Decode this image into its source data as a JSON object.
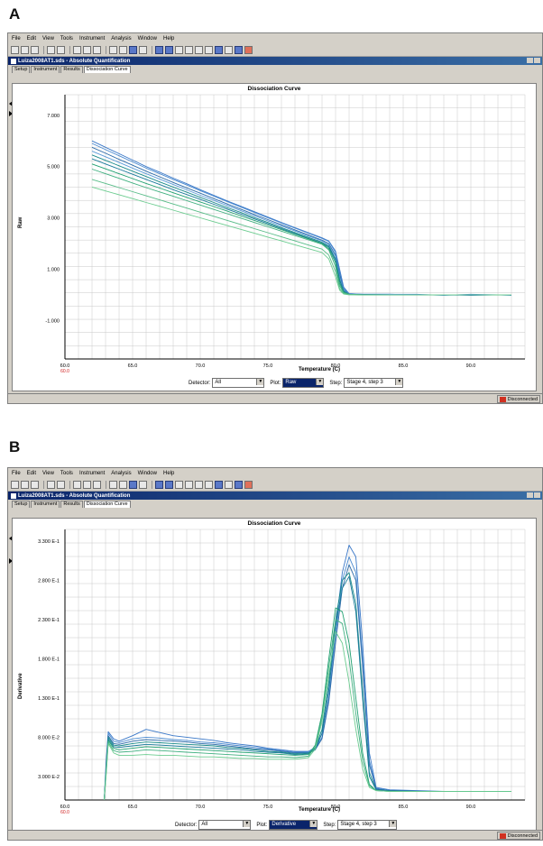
{
  "panels": [
    {
      "letter": "A",
      "menu": [
        "File",
        "Edit",
        "View",
        "Tools",
        "Instrument",
        "Analysis",
        "Window",
        "Help"
      ],
      "window_title": "Luiza2008AT1.sds - Absolute Quantification",
      "tabs": [
        "Setup",
        "Instrument",
        "Results",
        "Dissociation Curve"
      ],
      "active_tab": "Dissociation Curve",
      "chart_title": "Dissociation Curve",
      "ylabel": "Raw",
      "xlabel": "Temperature (C)",
      "detector_label": "Detector:",
      "detector_value": "All",
      "plot_label": "Plot:",
      "plot_value": "Raw",
      "step_label": "Step:",
      "step_value": "Stage 4, step 3",
      "status": "Disconnected"
    },
    {
      "letter": "B",
      "menu": [
        "File",
        "Edit",
        "View",
        "Tools",
        "Instrument",
        "Analysis",
        "Window",
        "Help"
      ],
      "window_title": "Luiza2008AT1.sds - Absolute Quantification",
      "tabs": [
        "Setup",
        "Instrument",
        "Results",
        "Dissociation Curve"
      ],
      "active_tab": "Dissociation Curve",
      "chart_title": "Dissociation Curve",
      "ylabel": "Derivative",
      "xlabel": "Temperature (C)",
      "detector_label": "Detector:",
      "detector_value": "All",
      "plot_label": "Plot:",
      "plot_value": "Derivative",
      "step_label": "Step:",
      "step_value": "Stage 4, step 3",
      "status": "Disconnected"
    }
  ],
  "chart_data": [
    {
      "type": "line",
      "title": "Dissociation Curve",
      "xlabel": "Temperature (C)",
      "ylabel": "Raw",
      "x_ticks": [
        "60.0",
        "65.0",
        "70.0",
        "75.0",
        "80.0",
        "85.0",
        "90.0"
      ],
      "x_tick_extra": "60.0",
      "y_ticks": [
        "7.000",
        "5.000",
        "3.000",
        "1.000",
        "-1.000"
      ],
      "xlim": [
        60,
        94
      ],
      "ylim": [
        -2.5,
        7.8
      ],
      "grid": true,
      "x": [
        62,
        63,
        64,
        65,
        66,
        67,
        68,
        69,
        70,
        71,
        72,
        73,
        74,
        75,
        76,
        77,
        78,
        79,
        79.5,
        80,
        80.3,
        80.6,
        81,
        82,
        84,
        86,
        88,
        90,
        92,
        93
      ],
      "series": [
        {
          "color": "#3a78c8",
          "values": [
            6.0,
            5.75,
            5.5,
            5.25,
            5.0,
            4.78,
            4.55,
            4.33,
            4.1,
            3.88,
            3.66,
            3.45,
            3.24,
            3.03,
            2.82,
            2.62,
            2.42,
            2.22,
            2.1,
            1.7,
            1.0,
            0.3,
            0.05,
            0.02,
            0.02,
            0.0,
            0.0,
            -0.02,
            0.0,
            0.0
          ]
        },
        {
          "color": "#4a8ad0",
          "values": [
            5.9,
            5.66,
            5.42,
            5.18,
            4.94,
            4.72,
            4.5,
            4.28,
            4.06,
            3.85,
            3.63,
            3.42,
            3.21,
            3.0,
            2.8,
            2.6,
            2.4,
            2.2,
            2.08,
            1.65,
            0.9,
            0.25,
            0.04,
            0.02,
            0.02,
            0.02,
            -0.02,
            0.02,
            0.0,
            -0.02
          ]
        },
        {
          "color": "#2c6aa8",
          "values": [
            5.75,
            5.52,
            5.28,
            5.05,
            4.82,
            4.6,
            4.38,
            4.17,
            3.96,
            3.75,
            3.54,
            3.34,
            3.13,
            2.93,
            2.73,
            2.53,
            2.33,
            2.13,
            2.0,
            1.55,
            0.8,
            0.2,
            0.03,
            0.01,
            0.0,
            0.0,
            0.0,
            0.0,
            0.0,
            0.0
          ]
        },
        {
          "color": "#5a9ad8",
          "values": [
            5.6,
            5.38,
            5.16,
            4.94,
            4.72,
            4.51,
            4.3,
            4.09,
            3.88,
            3.68,
            3.48,
            3.28,
            3.08,
            2.88,
            2.68,
            2.49,
            2.29,
            2.1,
            1.95,
            1.5,
            0.7,
            0.18,
            0.03,
            0.02,
            0.02,
            0.0,
            0.0,
            0.0,
            0.0,
            0.0
          ]
        },
        {
          "color": "#188a8a",
          "values": [
            5.45,
            5.24,
            5.03,
            4.82,
            4.61,
            4.4,
            4.2,
            4.0,
            3.8,
            3.6,
            3.4,
            3.21,
            3.01,
            2.82,
            2.62,
            2.43,
            2.24,
            2.05,
            1.9,
            1.4,
            0.6,
            0.15,
            0.02,
            0.01,
            0.0,
            0.0,
            0.0,
            0.0,
            0.0,
            0.0
          ]
        },
        {
          "color": "#1a7a9a",
          "values": [
            5.3,
            5.1,
            4.9,
            4.7,
            4.5,
            4.3,
            4.1,
            3.91,
            3.72,
            3.53,
            3.34,
            3.15,
            2.96,
            2.77,
            2.58,
            2.39,
            2.2,
            2.01,
            1.86,
            1.35,
            0.55,
            0.12,
            0.02,
            0.01,
            0.0,
            0.0,
            0.0,
            0.0,
            0.0,
            0.0
          ]
        },
        {
          "color": "#20a070",
          "values": [
            5.1,
            4.91,
            4.72,
            4.53,
            4.34,
            4.16,
            3.98,
            3.8,
            3.62,
            3.44,
            3.26,
            3.08,
            2.9,
            2.72,
            2.54,
            2.36,
            2.18,
            2.0,
            1.8,
            1.25,
            0.45,
            0.1,
            0.02,
            0.0,
            0.0,
            0.0,
            0.0,
            0.0,
            0.0,
            0.0
          ]
        },
        {
          "color": "#40b080",
          "values": [
            4.9,
            4.72,
            4.54,
            4.36,
            4.18,
            4.01,
            3.84,
            3.67,
            3.5,
            3.33,
            3.16,
            2.99,
            2.82,
            2.65,
            2.48,
            2.31,
            2.14,
            1.97,
            1.75,
            1.1,
            0.35,
            0.08,
            0.02,
            0.0,
            0.0,
            0.0,
            0.0,
            0.0,
            0.0,
            0.0
          ]
        },
        {
          "color": "#58bc88",
          "values": [
            4.5,
            4.34,
            4.18,
            4.02,
            3.86,
            3.7,
            3.54,
            3.38,
            3.22,
            3.06,
            2.9,
            2.74,
            2.58,
            2.42,
            2.26,
            2.1,
            1.94,
            1.78,
            1.55,
            0.9,
            0.25,
            0.05,
            0.01,
            0.0,
            0.0,
            0.0,
            0.0,
            0.0,
            0.0,
            0.0
          ]
        },
        {
          "color": "#6ccc90",
          "values": [
            4.2,
            4.05,
            3.9,
            3.75,
            3.6,
            3.45,
            3.3,
            3.15,
            3.0,
            2.85,
            2.7,
            2.55,
            2.4,
            2.25,
            2.1,
            1.95,
            1.8,
            1.65,
            1.4,
            0.7,
            0.18,
            0.03,
            0.0,
            0.0,
            0.0,
            0.0,
            0.0,
            0.0,
            0.0,
            0.0
          ]
        }
      ]
    },
    {
      "type": "line",
      "title": "Dissociation Curve",
      "xlabel": "Temperature (C)",
      "ylabel": "Derivative",
      "x_ticks": [
        "60.0",
        "65.0",
        "70.0",
        "75.0",
        "80.0",
        "85.0",
        "90.0"
      ],
      "x_tick_extra": "60.0",
      "y_ticks": [
        "3.300 E-1",
        "2.800 E-1",
        "2.300 E-1",
        "1.800 E-1",
        "1.300 E-1",
        "8.000 E-2",
        "3.000 E-2"
      ],
      "xlim": [
        60,
        94
      ],
      "ylim": [
        0,
        0.345
      ],
      "grid": true,
      "x": [
        62.9,
        63.05,
        63.2,
        63.6,
        64,
        65,
        66,
        67,
        68,
        69,
        70,
        71,
        72,
        73,
        74,
        75,
        76,
        77,
        78,
        78.5,
        79,
        79.5,
        80,
        80.5,
        81,
        81.5,
        82,
        82.5,
        83,
        84,
        86,
        88,
        90,
        92,
        93
      ],
      "series": [
        {
          "color": "#3a78c8",
          "values": [
            0.0,
            0.05,
            0.087,
            0.078,
            0.075,
            0.082,
            0.09,
            0.086,
            0.082,
            0.08,
            0.078,
            0.076,
            0.073,
            0.071,
            0.069,
            0.066,
            0.064,
            0.062,
            0.062,
            0.067,
            0.085,
            0.14,
            0.22,
            0.29,
            0.325,
            0.31,
            0.2,
            0.06,
            0.016,
            0.013,
            0.012,
            0.011,
            0.011,
            0.011,
            0.011
          ]
        },
        {
          "color": "#4a8ad0",
          "values": [
            0.0,
            0.045,
            0.085,
            0.075,
            0.073,
            0.078,
            0.08,
            0.079,
            0.077,
            0.076,
            0.074,
            0.073,
            0.071,
            0.069,
            0.067,
            0.065,
            0.063,
            0.061,
            0.061,
            0.065,
            0.08,
            0.13,
            0.21,
            0.28,
            0.31,
            0.29,
            0.18,
            0.05,
            0.015,
            0.012,
            0.011,
            0.011,
            0.011,
            0.011,
            0.011
          ]
        },
        {
          "color": "#2c6aa8",
          "values": [
            0.0,
            0.042,
            0.082,
            0.072,
            0.071,
            0.075,
            0.077,
            0.076,
            0.075,
            0.074,
            0.072,
            0.071,
            0.069,
            0.067,
            0.065,
            0.064,
            0.062,
            0.06,
            0.06,
            0.064,
            0.078,
            0.125,
            0.2,
            0.27,
            0.3,
            0.28,
            0.17,
            0.045,
            0.014,
            0.012,
            0.011,
            0.011,
            0.011,
            0.011,
            0.011
          ]
        },
        {
          "color": "#188a8a",
          "values": [
            0.0,
            0.04,
            0.08,
            0.07,
            0.069,
            0.072,
            0.074,
            0.073,
            0.072,
            0.071,
            0.07,
            0.069,
            0.067,
            0.066,
            0.064,
            0.062,
            0.061,
            0.059,
            0.06,
            0.066,
            0.09,
            0.15,
            0.23,
            0.28,
            0.29,
            0.25,
            0.14,
            0.035,
            0.013,
            0.012,
            0.011,
            0.011,
            0.011,
            0.011,
            0.011
          ]
        },
        {
          "color": "#1a7a9a",
          "values": [
            0.0,
            0.038,
            0.078,
            0.068,
            0.067,
            0.069,
            0.071,
            0.07,
            0.069,
            0.068,
            0.067,
            0.066,
            0.065,
            0.064,
            0.062,
            0.061,
            0.06,
            0.058,
            0.059,
            0.064,
            0.085,
            0.14,
            0.22,
            0.27,
            0.285,
            0.24,
            0.13,
            0.03,
            0.013,
            0.012,
            0.011,
            0.011,
            0.011,
            0.011,
            0.011
          ]
        },
        {
          "color": "#20a070",
          "values": [
            0.0,
            0.036,
            0.076,
            0.066,
            0.064,
            0.066,
            0.068,
            0.067,
            0.066,
            0.065,
            0.064,
            0.063,
            0.062,
            0.061,
            0.06,
            0.059,
            0.058,
            0.057,
            0.058,
            0.07,
            0.11,
            0.18,
            0.245,
            0.24,
            0.2,
            0.13,
            0.06,
            0.02,
            0.012,
            0.011,
            0.011,
            0.011,
            0.011,
            0.011,
            0.011
          ]
        },
        {
          "color": "#40b080",
          "values": [
            0.0,
            0.034,
            0.074,
            0.063,
            0.061,
            0.062,
            0.064,
            0.063,
            0.062,
            0.061,
            0.06,
            0.059,
            0.058,
            0.057,
            0.056,
            0.055,
            0.055,
            0.054,
            0.056,
            0.068,
            0.105,
            0.17,
            0.23,
            0.225,
            0.18,
            0.11,
            0.05,
            0.018,
            0.012,
            0.011,
            0.011,
            0.011,
            0.011,
            0.011,
            0.011
          ]
        },
        {
          "color": "#6ccc90",
          "values": [
            0.0,
            0.032,
            0.072,
            0.06,
            0.057,
            0.057,
            0.058,
            0.057,
            0.057,
            0.056,
            0.055,
            0.055,
            0.054,
            0.053,
            0.053,
            0.052,
            0.052,
            0.052,
            0.054,
            0.065,
            0.1,
            0.16,
            0.215,
            0.2,
            0.15,
            0.09,
            0.04,
            0.016,
            0.012,
            0.011,
            0.011,
            0.011,
            0.011,
            0.011,
            0.011
          ]
        }
      ]
    }
  ]
}
